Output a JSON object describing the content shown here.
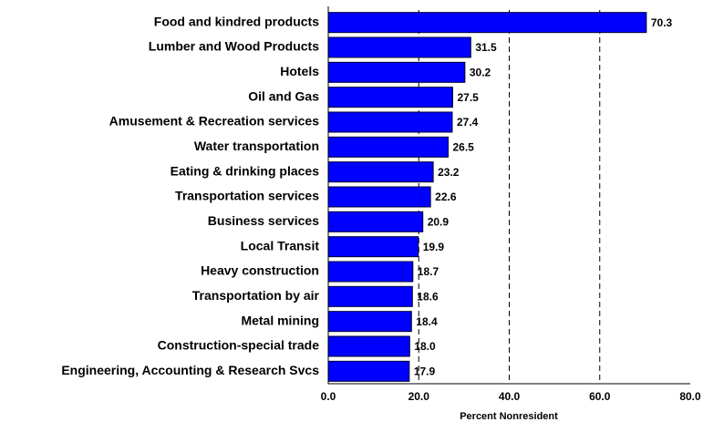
{
  "chart_data": {
    "type": "barh",
    "x_label": "Percent Nonresident",
    "categories": [
      "Food and kindred products",
      "Lumber and Wood Products",
      "Hotels",
      "Oil and Gas",
      "Amusement & Recreation services",
      "Water transportation",
      "Eating & drinking places",
      "Transportation services",
      "Business services",
      "Local Transit",
      "Heavy construction ",
      "Transportation by air",
      "Metal mining",
      "Construction-special trade",
      "Engineering, Accounting & Research Svcs"
    ],
    "values": [
      70.3,
      31.5,
      30.2,
      27.5,
      27.4,
      26.5,
      23.2,
      22.6,
      20.9,
      19.9,
      18.7,
      18.6,
      18.4,
      18.0,
      17.9
    ],
    "value_labels": [
      "70.3",
      "31.5",
      "30.2",
      "27.5",
      "27.4",
      "26.5",
      "23.2",
      "22.6",
      "20.9",
      "19.9",
      "18.7",
      "18.6",
      "18.4",
      "18.0",
      "17.9"
    ],
    "color": "#0000ff",
    "xlim": [
      0,
      80
    ],
    "xticks": [
      {
        "value": 0,
        "label": "0.0"
      },
      {
        "value": 20,
        "label": "20.0"
      },
      {
        "value": 40,
        "label": "40.0"
      },
      {
        "value": 60,
        "label": "60.0"
      },
      {
        "value": 80,
        "label": "80.0"
      }
    ],
    "grid": true
  }
}
